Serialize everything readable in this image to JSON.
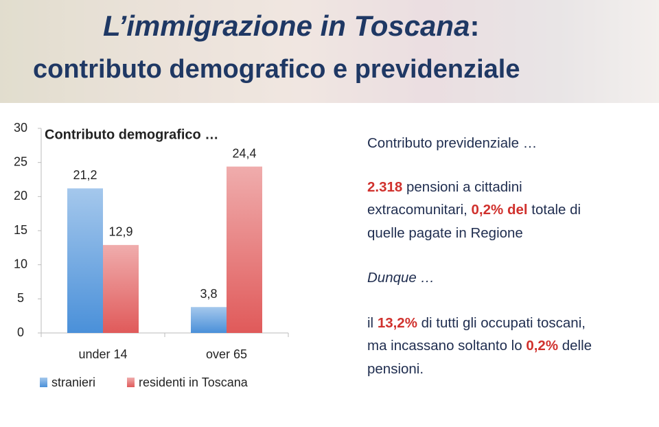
{
  "header": {
    "title": "L’immigrazione in Toscana",
    "title_colon": ":",
    "subtitle": "contributo demografico e previdenziale"
  },
  "chart_data": {
    "type": "bar",
    "title": "Contributo demografico …",
    "categories": [
      "under 14",
      "over 65"
    ],
    "series": [
      {
        "name": "stranieri",
        "color": "#4a90d9",
        "values": [
          21.2,
          3.8
        ],
        "value_labels": [
          "21,2",
          "3,8"
        ]
      },
      {
        "name": "residenti in Toscana",
        "color": "#e05a5a",
        "values": [
          12.9,
          24.4
        ],
        "value_labels": [
          "12,9",
          "24,4"
        ]
      }
    ],
    "ylim": [
      0,
      30
    ],
    "yticks": [
      0,
      5,
      10,
      15,
      20,
      25,
      30
    ]
  },
  "panel": {
    "heading": "Contributo previdenziale …",
    "paragraphs": [
      {
        "segments": [
          {
            "text": "2.318",
            "color": "#d0312d"
          },
          {
            "text": " pensioni a cittadini extracomunitari, "
          },
          {
            "text": "0,2% del",
            "color": "#d0312d"
          },
          {
            "text": " totale di quelle pagate in Regione"
          }
        ]
      },
      {
        "italic": true,
        "segments": [
          {
            "text": "Dunque …"
          }
        ]
      },
      {
        "segments": [
          {
            "text": "il "
          },
          {
            "text": "13,2%",
            "color": "#d0312d"
          },
          {
            "text": " di tutti gli occupati toscani, ma incassano soltanto lo "
          },
          {
            "text": "0,2%",
            "color": "#d0312d"
          },
          {
            "text": " delle pensioni."
          }
        ]
      }
    ]
  }
}
